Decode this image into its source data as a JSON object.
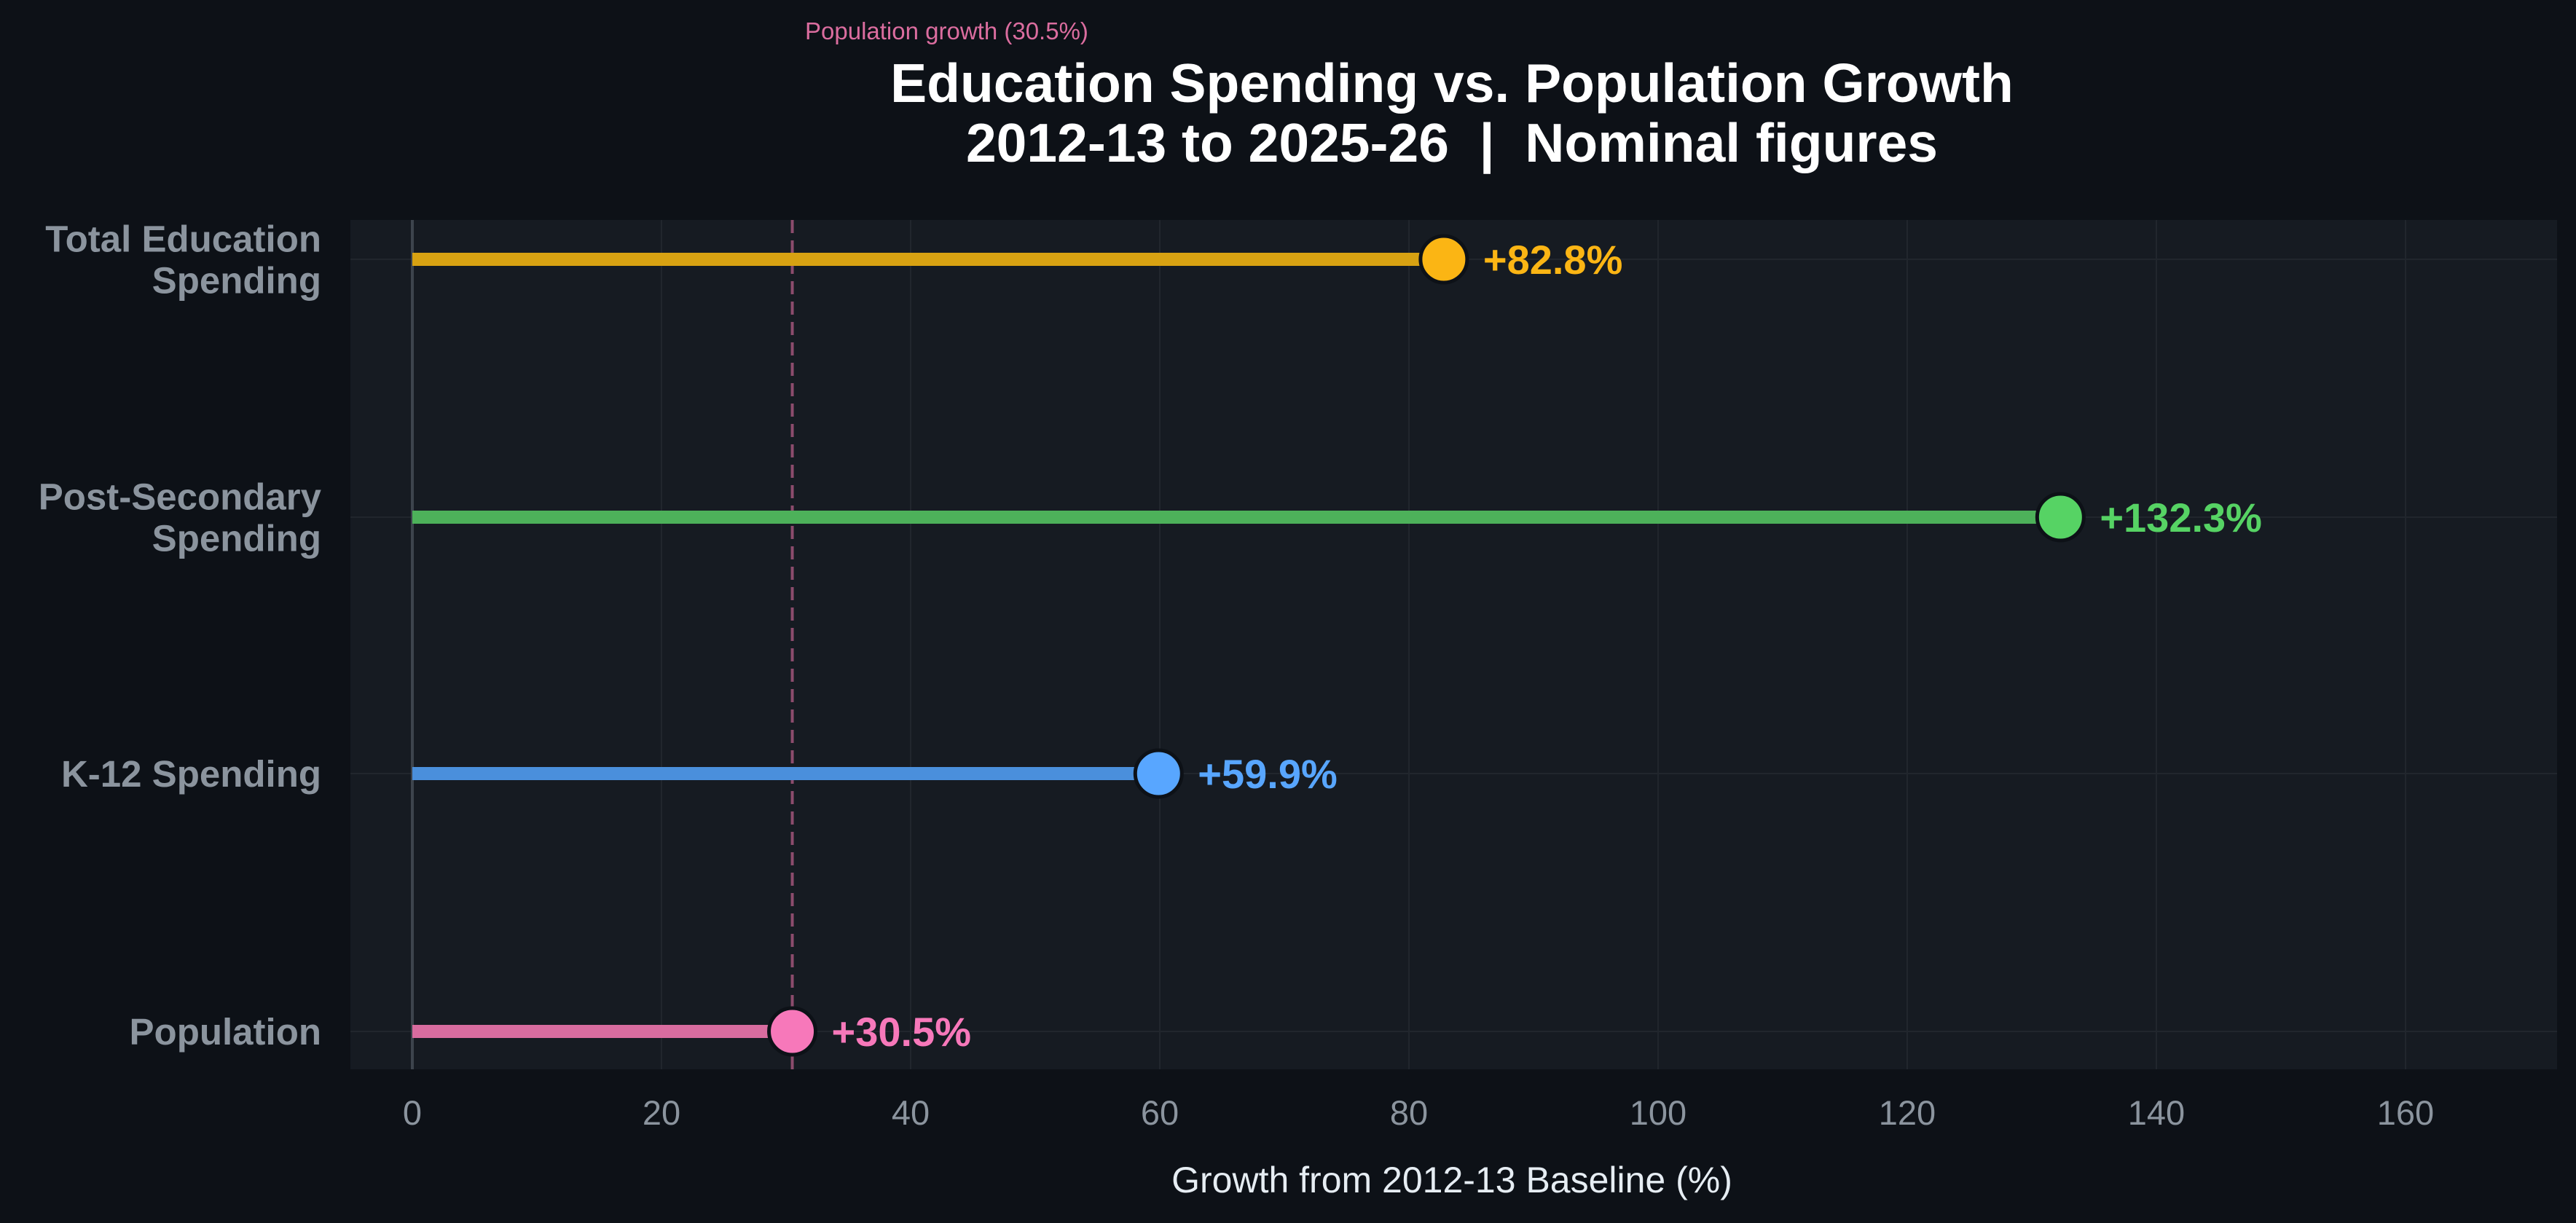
{
  "chart_data": {
    "type": "lollipop",
    "title": "Education Spending vs. Population Growth",
    "subtitle": "2012-13 to 2025-26  |  Nominal figures",
    "xlabel": "Growth from 2012-13 Baseline (%)",
    "ylabel": "",
    "xlim": [
      -5,
      172
    ],
    "xticks": [
      0,
      20,
      40,
      60,
      80,
      100,
      120,
      140,
      160
    ],
    "grid": true,
    "reference_line": {
      "value": 30.5,
      "label": "Population growth (30.5%)",
      "color": "#db6d9f",
      "style": "dashed"
    },
    "categories": [
      [
        "Total Education",
        "Spending"
      ],
      [
        "Post-Secondary",
        "Spending"
      ],
      [
        "K-12 Spending"
      ],
      [
        "Population"
      ]
    ],
    "values": [
      82.8,
      132.3,
      59.9,
      30.5
    ],
    "value_labels": [
      "+82.8%",
      "+132.3%",
      "+59.9%",
      "+30.5%"
    ],
    "colors": [
      "#fbb514",
      "#56d364",
      "#58a6ff",
      "#f778ba"
    ],
    "stem_colors": [
      "#d8a212",
      "#4db15a",
      "#4a8fdc",
      "#d86c9f"
    ]
  },
  "theme": {
    "page_background": "#0d1117",
    "plot_background": "#161b22",
    "grid_color": "#21262d",
    "zero_line_color": "#3d444d",
    "text_muted": "#8b949e",
    "text_bright": "#ffffff"
  }
}
